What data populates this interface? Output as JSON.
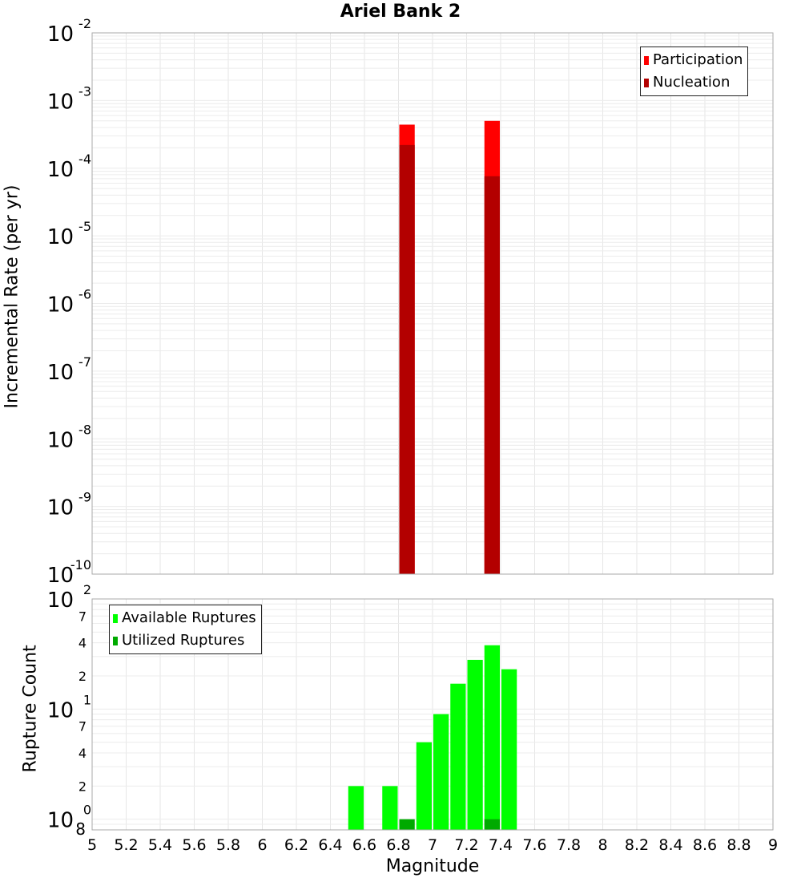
{
  "title": "Ariel Bank 2",
  "top_plot": {
    "ylabel": "Incremental Rate (per yr)",
    "yticks": [
      "10^-2",
      "10^-3",
      "10^-4",
      "10^-5",
      "10^-6",
      "10^-7",
      "10^-8",
      "10^-9",
      "10^-10"
    ],
    "legend": [
      {
        "label": "Participation",
        "color": "#ff0000"
      },
      {
        "label": "Nucleation",
        "color": "#b30000"
      }
    ]
  },
  "bottom_plot": {
    "ylabel": "Rupture Count",
    "legend": [
      {
        "label": "Available Ruptures",
        "color": "#00ff00"
      },
      {
        "label": "Utilized Ruptures",
        "color": "#00aa00"
      }
    ]
  },
  "xlabel": "Magnitude",
  "xticks": [
    "5",
    "5.2",
    "5.4",
    "5.6",
    "5.8",
    "6",
    "6.2",
    "6.4",
    "6.6",
    "6.8",
    "7",
    "7.2",
    "7.4",
    "7.6",
    "7.8",
    "8",
    "8.2",
    "8.4",
    "8.6",
    "8.8",
    "9"
  ],
  "chart_data": [
    {
      "type": "bar",
      "title": "Ariel Bank 2",
      "xlabel": "Magnitude",
      "ylabel": "Incremental Rate (per yr)",
      "yscale": "log",
      "ylim": [
        1e-10,
        0.01
      ],
      "xlim": [
        5,
        9
      ],
      "grid": true,
      "legend_position": "upper right",
      "bin_width": 0.1,
      "x": [
        6.85,
        7.35
      ],
      "series": [
        {
          "name": "Participation",
          "color": "#ff0000",
          "values": [
            0.00044,
            0.0005
          ]
        },
        {
          "name": "Nucleation",
          "color": "#b30000",
          "values": [
            0.00022,
            7.6e-05
          ]
        }
      ]
    },
    {
      "type": "bar",
      "xlabel": "Magnitude",
      "ylabel": "Rupture Count",
      "yscale": "log",
      "ylim": [
        0.8,
        100
      ],
      "xlim": [
        5,
        9
      ],
      "grid": true,
      "legend_position": "upper left",
      "bin_width": 0.1,
      "x": [
        6.55,
        6.75,
        6.85,
        6.95,
        7.05,
        7.15,
        7.25,
        7.35,
        7.45
      ],
      "series": [
        {
          "name": "Available Ruptures",
          "color": "#00ff00",
          "values": [
            2,
            2,
            0,
            5,
            9,
            17,
            28,
            38,
            23
          ]
        },
        {
          "name": "Utilized Ruptures",
          "color": "#00aa00",
          "values": [
            0,
            0,
            1,
            0,
            0,
            0,
            0,
            1,
            0
          ]
        }
      ]
    }
  ]
}
